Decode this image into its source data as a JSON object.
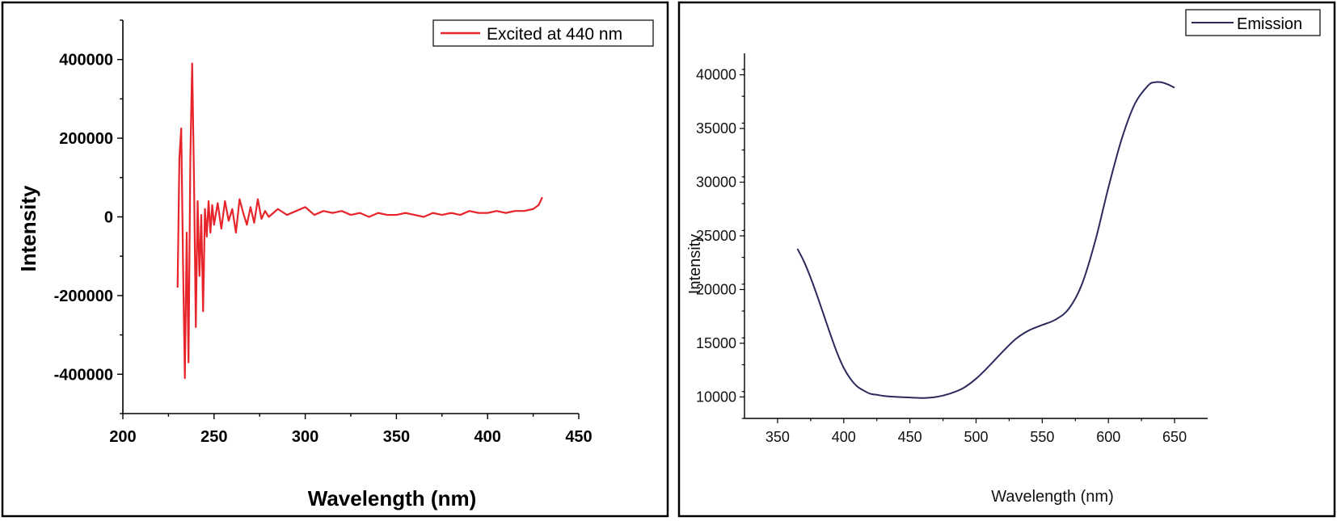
{
  "colors": {
    "excitation_line": "#e8242b",
    "emission_line": "#2b2a5c",
    "axis": "#000000"
  },
  "chart_data": [
    {
      "type": "line",
      "title": "",
      "xlabel": "Wavelength (nm)",
      "ylabel": "Intensity",
      "xlim": [
        200,
        450
      ],
      "ylim": [
        -500000,
        500000
      ],
      "x_ticks": [
        "200",
        "250",
        "300",
        "350",
        "400",
        "450"
      ],
      "y_ticks": [
        "-400000",
        "-200000",
        "0",
        "200000",
        "400000"
      ],
      "legend_position": "top-right",
      "series": [
        {
          "name": "Excited at 440 nm",
          "color": "#e8242b",
          "x": [
            230,
            231,
            232,
            233,
            234,
            235,
            236,
            237,
            238,
            239,
            240,
            241,
            242,
            243,
            244,
            245,
            246,
            247,
            248,
            249,
            250,
            252,
            254,
            256,
            258,
            260,
            262,
            264,
            266,
            268,
            270,
            272,
            274,
            276,
            278,
            280,
            285,
            290,
            295,
            300,
            305,
            310,
            315,
            320,
            325,
            330,
            335,
            340,
            345,
            350,
            355,
            360,
            365,
            370,
            375,
            380,
            385,
            390,
            395,
            400,
            405,
            410,
            415,
            420,
            425,
            428,
            430
          ],
          "y": [
            -180000,
            150000,
            225000,
            -120000,
            -410000,
            -40000,
            -370000,
            150000,
            390000,
            100000,
            -280000,
            40000,
            -150000,
            5000,
            -240000,
            20000,
            -50000,
            40000,
            -40000,
            30000,
            -20000,
            35000,
            -30000,
            40000,
            -10000,
            20000,
            -40000,
            45000,
            10000,
            -20000,
            25000,
            -15000,
            45000,
            -5000,
            15000,
            0,
            20000,
            5000,
            15000,
            25000,
            5000,
            15000,
            10000,
            15000,
            5000,
            10000,
            0,
            10000,
            5000,
            5000,
            10000,
            5000,
            0,
            10000,
            5000,
            10000,
            5000,
            15000,
            10000,
            10000,
            15000,
            10000,
            15000,
            15000,
            20000,
            30000,
            50000
          ]
        }
      ]
    },
    {
      "type": "line",
      "title": "",
      "xlabel": "Wavelength (nm)",
      "ylabel": "Intensity",
      "xlim": [
        325,
        675
      ],
      "ylim": [
        8000,
        42000
      ],
      "x_ticks": [
        "350",
        "400",
        "450",
        "500",
        "550",
        "600",
        "650"
      ],
      "y_ticks": [
        "10000",
        "15000",
        "20000",
        "25000",
        "30000",
        "35000",
        "40000"
      ],
      "legend_position": "top-right",
      "series": [
        {
          "name": "Emission",
          "color": "#2b2a5c",
          "x": [
            365,
            370,
            375,
            380,
            385,
            390,
            395,
            400,
            405,
            410,
            415,
            420,
            425,
            430,
            440,
            450,
            460,
            470,
            480,
            490,
            500,
            510,
            520,
            530,
            540,
            550,
            560,
            570,
            580,
            590,
            600,
            610,
            620,
            630,
            635,
            640,
            645,
            650
          ],
          "y": [
            23800,
            22600,
            21100,
            19400,
            17600,
            15800,
            14100,
            12700,
            11700,
            11000,
            10600,
            10300,
            10200,
            10100,
            10000,
            9950,
            9900,
            10000,
            10300,
            10800,
            11700,
            12900,
            14200,
            15400,
            16200,
            16700,
            17200,
            18200,
            20500,
            24500,
            29500,
            34000,
            37300,
            39000,
            39300,
            39300,
            39100,
            38800
          ]
        }
      ]
    }
  ]
}
